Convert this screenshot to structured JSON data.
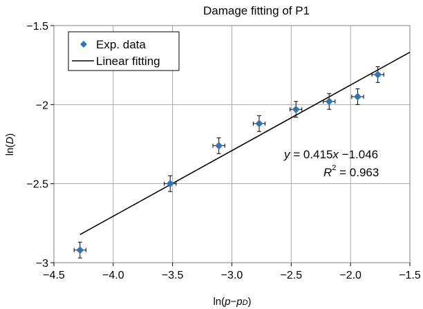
{
  "chart_data": {
    "type": "scatter",
    "title": "Damage fitting of P1",
    "xlabel": {
      "prefix": "ln(",
      "var1": "p",
      "dash": "−",
      "var2": "p",
      "sub": "D",
      "suffix": ")"
    },
    "ylabel": {
      "prefix": "ln(",
      "var": "D",
      "suffix": ")"
    },
    "xlim": [
      -4.5,
      -1.5
    ],
    "ylim": [
      -3.0,
      -1.5
    ],
    "xticks": [
      -4.5,
      -4.0,
      -3.5,
      -3.0,
      -2.5,
      -2.0,
      -1.5
    ],
    "yticks": [
      -3.0,
      -2.5,
      -2.0,
      -1.5
    ],
    "xtick_labels": [
      "−4.5",
      "−4.0",
      "−3.5",
      "−3.0",
      "−2.5",
      "−2.0",
      "−1.5"
    ],
    "ytick_labels": [
      "−3",
      "−2.5",
      "−2",
      "−1.5"
    ],
    "grid": true,
    "legend_position": "top-left",
    "series": [
      {
        "name": "Exp. data",
        "kind": "points",
        "color": "#2e75b6",
        "marker": "diamond",
        "x": [
          -4.28,
          -3.52,
          -3.11,
          -2.77,
          -2.46,
          -2.18,
          -1.94,
          -1.77
        ],
        "y": [
          -2.92,
          -2.5,
          -2.26,
          -2.12,
          -2.03,
          -1.98,
          -1.95,
          -1.81
        ],
        "x_err": 0.05,
        "y_err": 0.05
      },
      {
        "name": "Linear fitting",
        "kind": "line",
        "color": "#000000",
        "slope": 0.415,
        "intercept": -1.046,
        "x_range": [
          -4.28,
          -1.5
        ]
      }
    ],
    "annotations": {
      "equation": {
        "lhs": "y",
        "eq": " = 0.415",
        "var": "x",
        "rest": " −1.046"
      },
      "r2": {
        "lhs": "R",
        "sup": "2",
        "rest": " = 0.963"
      }
    }
  }
}
